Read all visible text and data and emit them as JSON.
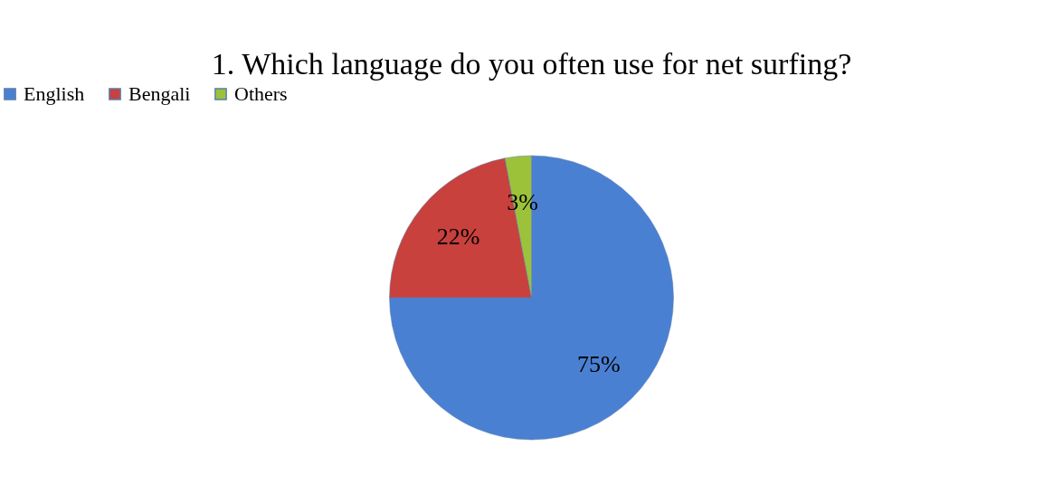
{
  "chart_data": {
    "type": "pie",
    "title": "1. Which language do you often use for net surfing?",
    "categories": [
      "English",
      "Bengali",
      "Others"
    ],
    "values": [
      75,
      22,
      3
    ],
    "colors": [
      "#4a80d2",
      "#c8413d",
      "#9cc23a"
    ],
    "value_labels": [
      "75%",
      "22%",
      "3%"
    ],
    "legend": "top"
  }
}
